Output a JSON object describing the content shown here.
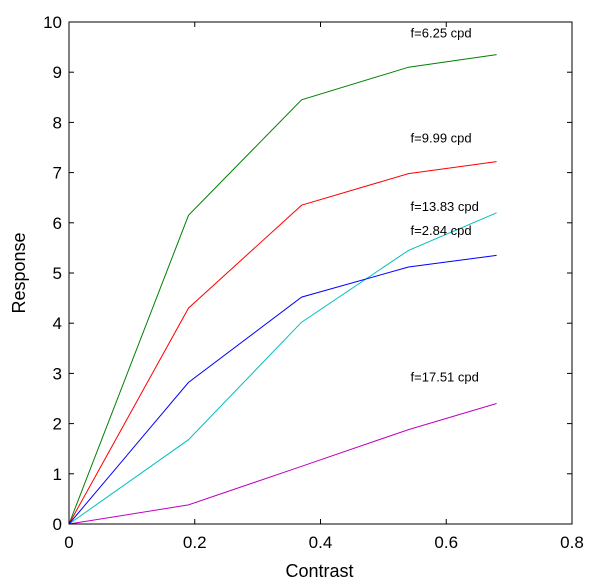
{
  "chart_data": {
    "type": "line",
    "title": "",
    "xlabel": "Contrast",
    "ylabel": "Response",
    "xlim": [
      0,
      0.8
    ],
    "ylim": [
      0,
      10
    ],
    "xticks": [
      0,
      0.2,
      0.4,
      0.6,
      0.8
    ],
    "xtick_labels": [
      "0",
      "0.2",
      "0.4",
      "0.6",
      "0.8"
    ],
    "yticks": [
      0,
      1,
      2,
      3,
      4,
      5,
      6,
      7,
      8,
      9,
      10
    ],
    "ytick_labels": [
      "0",
      "1",
      "2",
      "3",
      "4",
      "5",
      "6",
      "7",
      "8",
      "9",
      "10"
    ],
    "grid": false,
    "x": [
      0,
      0.19,
      0.37,
      0.54,
      0.68
    ],
    "series": [
      {
        "name": "f=6.25 cpd",
        "color": "#008000",
        "values": [
          0,
          6.15,
          8.45,
          9.1,
          9.35
        ]
      },
      {
        "name": "f=9.99 cpd",
        "color": "#ff0000",
        "values": [
          0,
          4.3,
          6.35,
          6.98,
          7.22
        ]
      },
      {
        "name": "f=13.83 cpd",
        "color": "#00bfbf",
        "values": [
          0,
          1.68,
          4.02,
          5.45,
          6.2
        ]
      },
      {
        "name": "f=2.84 cpd",
        "color": "#0000ff",
        "values": [
          0,
          2.82,
          4.52,
          5.12,
          5.35
        ]
      },
      {
        "name": "f=17.51 cpd",
        "color": "#bf00bf",
        "values": [
          0,
          0.38,
          1.15,
          1.88,
          2.4
        ]
      }
    ]
  }
}
